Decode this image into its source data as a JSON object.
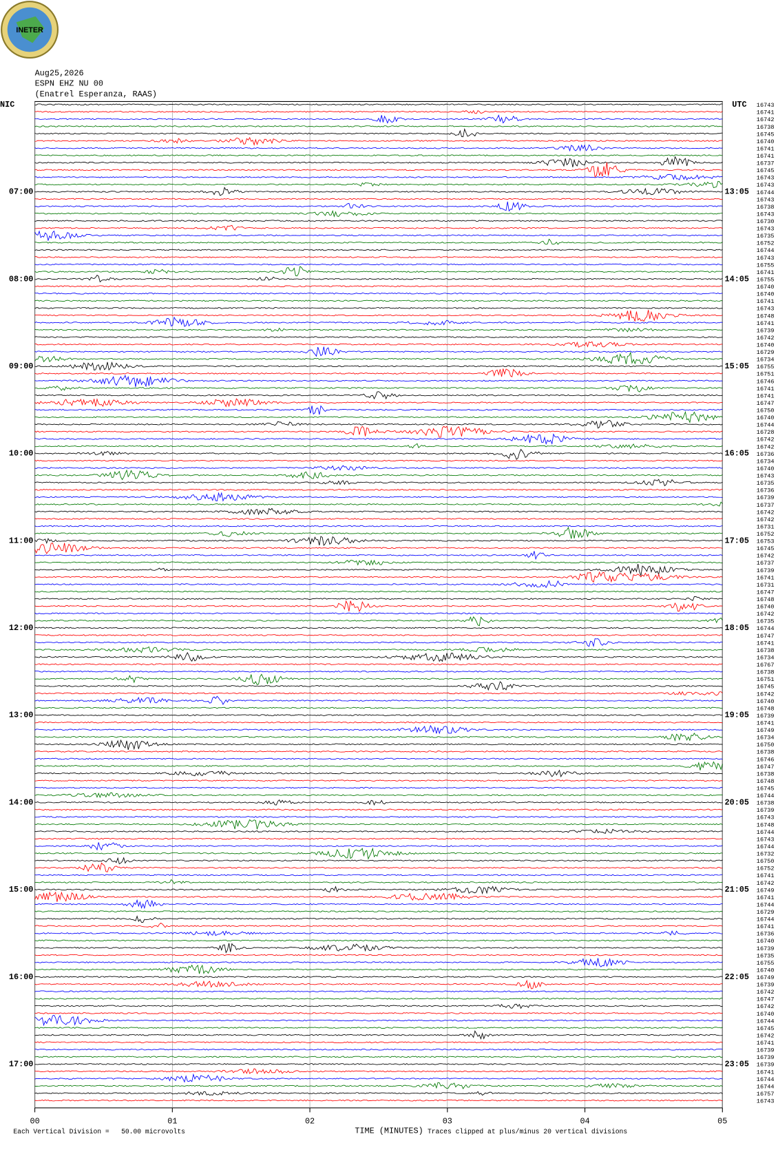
{
  "logo": "INETER",
  "header": {
    "date": "Aug25,2026",
    "station": "ESPN EHZ NU 00",
    "location": "(Enatrel Esperanza, RAAS)"
  },
  "left_zone": "NIC",
  "right_zone": "UTC",
  "left_times": [
    "07:00",
    "08:00",
    "09:00",
    "10:00",
    "11:00",
    "12:00",
    "13:00",
    "14:00",
    "15:00",
    "16:00",
    "17:00"
  ],
  "right_times": [
    "13:05",
    "14:05",
    "15:05",
    "16:05",
    "17:05",
    "18:05",
    "19:05",
    "20:05",
    "21:05",
    "22:05",
    "23:05"
  ],
  "row_labels": [
    16743,
    16741,
    16742,
    16738,
    16745,
    16740,
    16741,
    16741,
    16737,
    16745,
    16743,
    16743,
    16744,
    16743,
    16738,
    16743,
    16730,
    16743,
    16735,
    16752,
    16744,
    16743,
    16755,
    16741,
    16755,
    16740,
    16740,
    16741,
    16743,
    16748,
    16741,
    16739,
    16742,
    16740,
    16729,
    16734,
    16755,
    16751,
    16746,
    16741,
    16741,
    16747,
    16750,
    16740,
    16744,
    16728,
    16742,
    16742,
    16736,
    16734,
    16740,
    16743,
    16735,
    16736,
    16739,
    16737,
    16742,
    16742,
    16731,
    16752,
    16753,
    16745,
    16742,
    16737,
    16739,
    16741,
    16731,
    16747,
    16748,
    16740,
    16742,
    16735,
    16744,
    16747,
    16741,
    16738,
    16734,
    16767,
    16738,
    16751,
    16745,
    16742,
    16740,
    16748,
    16739,
    16741,
    16749,
    16734,
    16750,
    16738,
    16746,
    16747,
    16738,
    16748,
    16745,
    16744,
    16738,
    16739,
    16743,
    16748,
    16744,
    16743,
    16744,
    16732,
    16750,
    16752,
    16741,
    16742,
    16749,
    16741,
    16744,
    16729,
    16744,
    16741,
    16736,
    16740,
    16739,
    16735,
    16755,
    16740,
    16749,
    16739,
    16742,
    16747,
    16742,
    16740,
    16744,
    16745,
    16742,
    16741,
    16739,
    16739,
    16739,
    16741,
    16744,
    16744,
    16757,
    16743
  ],
  "trace_colors": [
    "#000000",
    "#ff0000",
    "#0000ff",
    "#007700"
  ],
  "x_axis": {
    "label": "TIME (MINUTES)",
    "lim": [
      0,
      5
    ],
    "ticks": [
      {
        "value": 0,
        "label": "00"
      },
      {
        "value": 1,
        "label": "01"
      },
      {
        "value": 2,
        "label": "02"
      },
      {
        "value": 3,
        "label": "03"
      },
      {
        "value": 4,
        "label": "04"
      },
      {
        "value": 5,
        "label": "05"
      }
    ]
  },
  "footer": {
    "scale": "Each Vertical Division =   50.00 microvolts",
    "clip": "Traces clipped at plus/minus 20 vertical divisions"
  }
}
